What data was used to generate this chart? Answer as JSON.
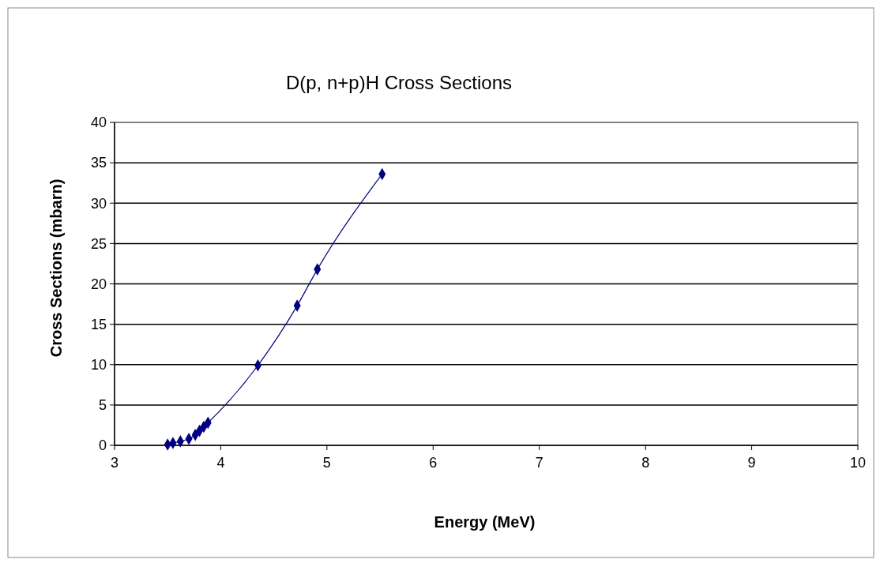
{
  "chart_data": {
    "type": "line",
    "title": "D(p, n+p)H Cross Sections",
    "xlabel": "Energy (MeV)",
    "ylabel": "Cross Sections (mbarn)",
    "x": [
      3.5,
      3.55,
      3.62,
      3.7,
      3.76,
      3.8,
      3.84,
      3.88,
      4.35,
      4.72,
      4.91,
      5.52
    ],
    "series": [
      {
        "color": "#000080",
        "values": [
          0.1,
          0.3,
          0.5,
          0.8,
          1.3,
          1.8,
          2.3,
          2.8,
          9.9,
          17.3,
          21.8,
          33.6
        ]
      }
    ],
    "xlim": [
      3,
      10
    ],
    "xticks": [
      3,
      4,
      5,
      6,
      7,
      8,
      9,
      10
    ],
    "ylim": [
      0,
      40
    ],
    "yticks": [
      0,
      5,
      10,
      15,
      20,
      25,
      30,
      35,
      40
    ],
    "grid": "y",
    "marker": "diamond"
  }
}
